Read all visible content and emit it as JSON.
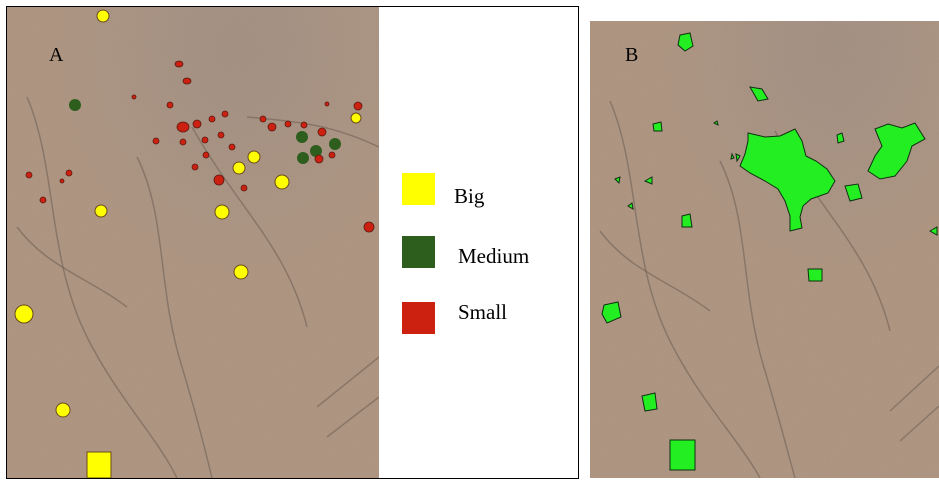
{
  "panel_a": {
    "label": "A",
    "legend": [
      {
        "label": "Big",
        "color": "#ffff00"
      },
      {
        "label": "Medium",
        "color": "#2e5e1e"
      },
      {
        "label": "Small",
        "color": "#cc2010"
      }
    ]
  },
  "panel_b": {
    "label": "B",
    "fill_color": "#22ee22"
  },
  "terrain_color": "#a8907c"
}
